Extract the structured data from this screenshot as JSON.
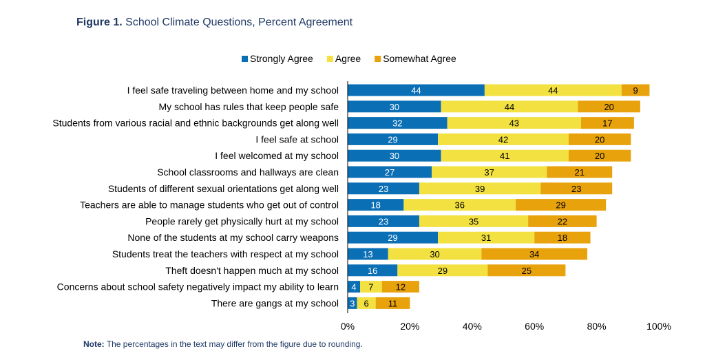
{
  "figure": {
    "label": "Figure 1.",
    "title": "School Climate Questions, Percent Agreement"
  },
  "note": {
    "label": "Note:",
    "text": "The percentages in the text may differ from the figure due to rounding."
  },
  "colors": {
    "strongly_agree": "#0b6fb6",
    "agree": "#f2e141",
    "somewhat_agree": "#e8a20c",
    "text": "#000000",
    "title": "#1f3864",
    "axis": "#000000"
  },
  "chart_data": {
    "type": "bar",
    "orientation": "horizontal",
    "stacked": true,
    "title": "",
    "xlabel": "",
    "ylabel": "",
    "xlim": [
      0,
      100
    ],
    "x_ticks": [
      "0%",
      "20%",
      "40%",
      "60%",
      "80%",
      "100%"
    ],
    "x_tick_values": [
      0,
      20,
      40,
      60,
      80,
      100
    ],
    "grid": false,
    "legend_position": "top",
    "categories": [
      "I feel safe traveling between home and my school",
      "My school has rules that keep people safe",
      "Students from various racial and ethnic backgrounds get along well",
      "I feel safe at school",
      "I feel welcomed at my school",
      "School classrooms and hallways are clean",
      "Students of different sexual orientations get along well",
      "Teachers are able to manage students who get out of control",
      "People rarely get physically hurt at my school",
      "None of the students at my school carry weapons",
      "Students treat the teachers with respect at my school",
      "Theft doesn't happen much at my school",
      "Concerns about school safety negatively impact my ability to learn",
      "There are gangs at my school"
    ],
    "series": [
      {
        "name": "Strongly Agree",
        "color": "#0b6fb6",
        "label_color": "#ffffff",
        "values": [
          44,
          30,
          32,
          29,
          30,
          27,
          23,
          18,
          23,
          29,
          13,
          16,
          4,
          3
        ]
      },
      {
        "name": "Agree",
        "color": "#f2e141",
        "label_color": "#000000",
        "values": [
          44,
          44,
          43,
          42,
          41,
          37,
          39,
          36,
          35,
          31,
          30,
          29,
          7,
          6
        ]
      },
      {
        "name": "Somewhat Agree",
        "color": "#e8a20c",
        "label_color": "#000000",
        "values": [
          9,
          20,
          17,
          20,
          20,
          21,
          23,
          29,
          22,
          18,
          34,
          25,
          12,
          11
        ]
      }
    ]
  }
}
